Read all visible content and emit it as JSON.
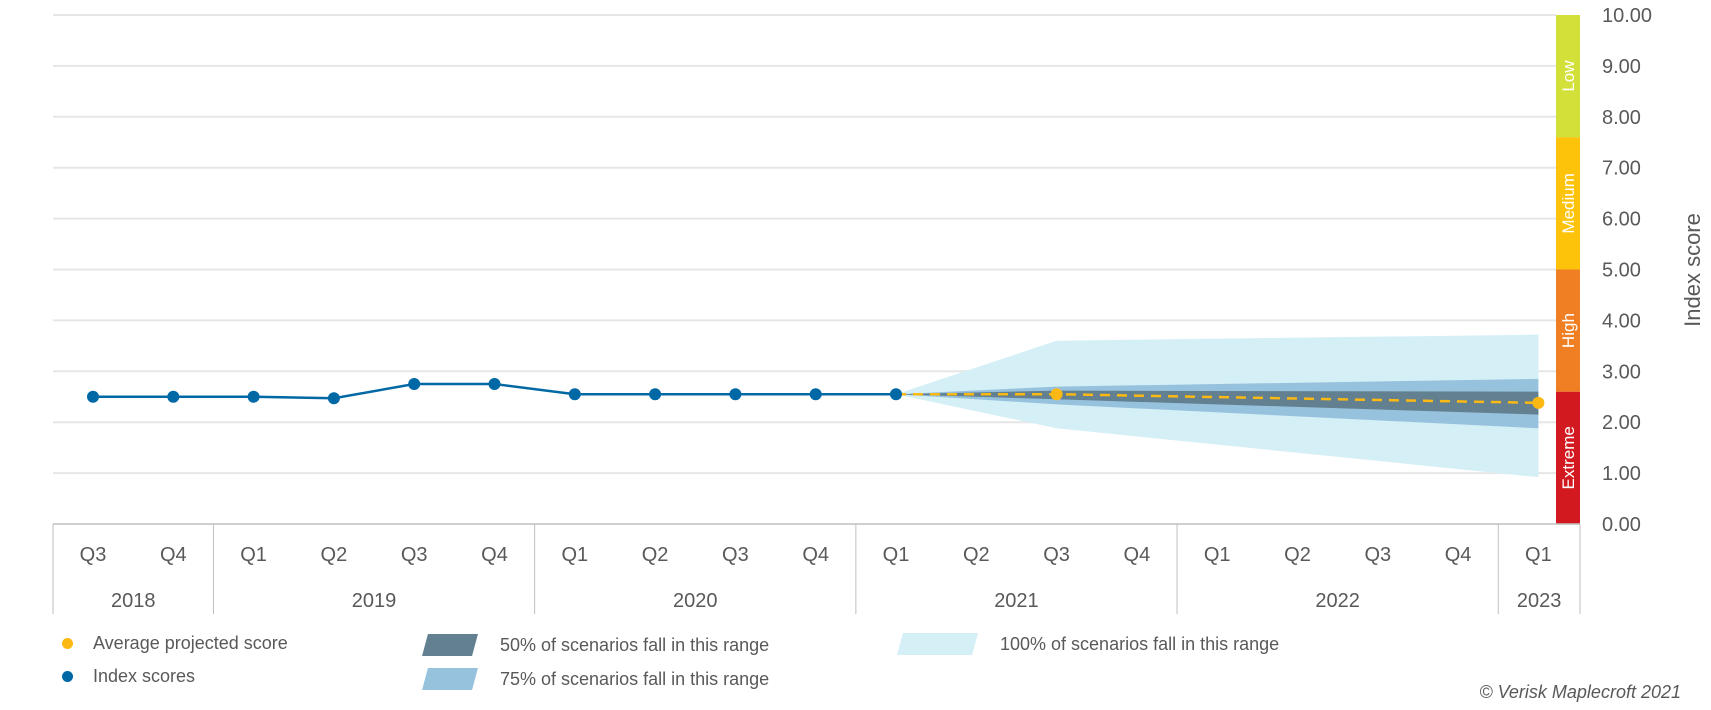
{
  "chart_data": {
    "type": "line",
    "ylabel": "Index score",
    "ylim": [
      0,
      10
    ],
    "yticks": [
      "0.00",
      "1.00",
      "2.00",
      "3.00",
      "4.00",
      "5.00",
      "6.00",
      "7.00",
      "8.00",
      "9.00",
      "10.00"
    ],
    "grid": true,
    "quarters": [
      "Q3",
      "Q4",
      "Q1",
      "Q2",
      "Q3",
      "Q4",
      "Q1",
      "Q2",
      "Q3",
      "Q4",
      "Q1",
      "Q2",
      "Q3",
      "Q4",
      "Q1",
      "Q2",
      "Q3",
      "Q4",
      "Q1"
    ],
    "years": [
      {
        "label": "2018",
        "span": 2
      },
      {
        "label": "2019",
        "span": 4
      },
      {
        "label": "2020",
        "span": 4
      },
      {
        "label": "2021",
        "span": 4
      },
      {
        "label": "2022",
        "span": 4
      },
      {
        "label": "2023",
        "span": 1
      }
    ],
    "index_scores": {
      "name": "Index scores",
      "color": "#0068a5",
      "values": [
        2.5,
        2.5,
        2.5,
        2.47,
        2.75,
        2.75,
        2.55,
        2.55,
        2.55,
        2.55,
        2.55
      ]
    },
    "projection": {
      "name": "Average projected score",
      "color": "#fdb913",
      "points": [
        [
          10,
          2.55
        ],
        [
          12,
          2.55
        ],
        [
          18,
          2.38
        ]
      ]
    },
    "ranges": [
      {
        "name": "100% of scenarios fall in this range",
        "color": "#d4eff6",
        "upper": [
          [
            10,
            2.55
          ],
          [
            12,
            3.6
          ],
          [
            18,
            3.72
          ]
        ],
        "lower": [
          [
            10,
            2.55
          ],
          [
            12,
            1.88
          ],
          [
            18,
            0.92
          ]
        ]
      },
      {
        "name": "75% of scenarios fall in this range",
        "color": "#97c2dd",
        "upper": [
          [
            10,
            2.55
          ],
          [
            12,
            2.7
          ],
          [
            18,
            2.85
          ]
        ],
        "lower": [
          [
            10,
            2.55
          ],
          [
            12,
            2.35
          ],
          [
            18,
            1.88
          ]
        ]
      },
      {
        "name": "50% of scenarios fall in this range",
        "color": "#62808f",
        "upper": [
          [
            10,
            2.55
          ],
          [
            12,
            2.62
          ],
          [
            18,
            2.6
          ]
        ],
        "lower": [
          [
            10,
            2.55
          ],
          [
            12,
            2.45
          ],
          [
            18,
            2.15
          ]
        ]
      }
    ],
    "risk_bands": [
      {
        "label": "Extreme",
        "from": 0,
        "to": 2.6,
        "color": "#d1191f"
      },
      {
        "label": "High",
        "from": 2.6,
        "to": 5.0,
        "color": "#f07f23"
      },
      {
        "label": "Medium",
        "from": 5.0,
        "to": 7.6,
        "color": "#fdc30b"
      },
      {
        "label": "Low",
        "from": 7.6,
        "to": 10.0,
        "color": "#d4e03a"
      }
    ]
  },
  "legend": {
    "projected": "Average projected score",
    "index": "Index scores",
    "r50": "50% of scenarios fall in this range",
    "r75": "75% of scenarios fall in this range",
    "r100": "100% of scenarios fall in this range"
  },
  "copyright": "© Verisk Maplecroft 2021"
}
